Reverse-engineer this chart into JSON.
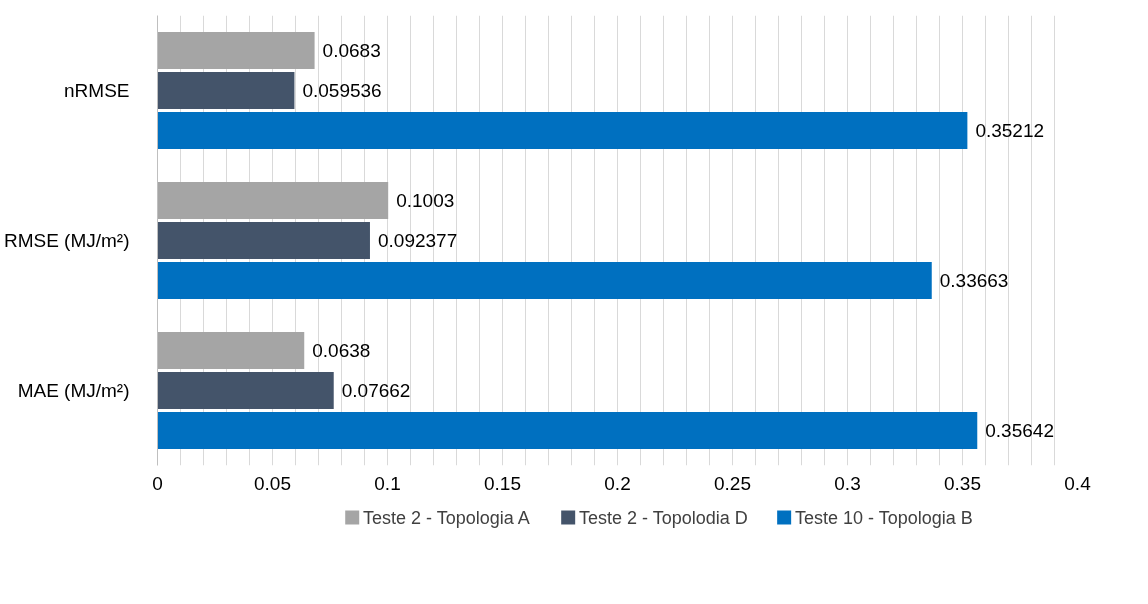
{
  "chart_data": {
    "type": "bar",
    "orientation": "horizontal",
    "categories": [
      "nRMSE",
      "RMSE (MJ/m²)",
      "MAE (MJ/m²)"
    ],
    "series": [
      {
        "name": "Teste 2 - Topologia A",
        "color": "#a5a5a5",
        "values": [
          0.0683,
          0.1003,
          0.0638
        ]
      },
      {
        "name": "Teste 2 - Topolodia D",
        "color": "#44546a",
        "values": [
          0.059536,
          0.092377,
          0.07662
        ]
      },
      {
        "name": "Teste 10 - Topologia B",
        "color": "#0070c0",
        "values": [
          0.35212,
          0.33663,
          0.35642
        ]
      }
    ],
    "xlim": [
      0,
      0.4
    ],
    "xticks": [
      0,
      {
        "value": 0.01,
        "label": null
      },
      {
        "value": 0.02,
        "label": null
      },
      {
        "value": 0.03,
        "label": null
      },
      {
        "value": 0.04,
        "label": null
      },
      0.05,
      {
        "value": 0.06,
        "label": null
      },
      {
        "value": 0.07,
        "label": null
      },
      {
        "value": 0.08,
        "label": null
      },
      {
        "value": 0.09,
        "label": null
      },
      0.1,
      {
        "value": 0.11,
        "label": null
      },
      {
        "value": 0.12,
        "label": null
      },
      {
        "value": 0.13,
        "label": null
      },
      {
        "value": 0.14,
        "label": null
      },
      0.15,
      {
        "value": 0.16,
        "label": null
      },
      {
        "value": 0.17,
        "label": null
      },
      {
        "value": 0.18,
        "label": null
      },
      {
        "value": 0.19,
        "label": null
      },
      0.2,
      {
        "value": 0.21,
        "label": null
      },
      {
        "value": 0.22,
        "label": null
      },
      {
        "value": 0.23,
        "label": null
      },
      {
        "value": 0.24,
        "label": null
      },
      0.25,
      {
        "value": 0.26,
        "label": null
      },
      {
        "value": 0.27,
        "label": null
      },
      {
        "value": 0.28,
        "label": null
      },
      {
        "value": 0.29,
        "label": null
      },
      0.3,
      {
        "value": 0.31,
        "label": null
      },
      {
        "value": 0.32,
        "label": null
      },
      {
        "value": 0.33,
        "label": null
      },
      {
        "value": 0.34,
        "label": null
      },
      0.35,
      {
        "value": 0.36,
        "label": null
      },
      {
        "value": 0.37,
        "label": null
      },
      {
        "value": 0.38,
        "label": null
      },
      {
        "value": 0.39,
        "label": null
      },
      0.4
    ],
    "grid": "x",
    "legend": "bottom",
    "data_labels": true
  }
}
